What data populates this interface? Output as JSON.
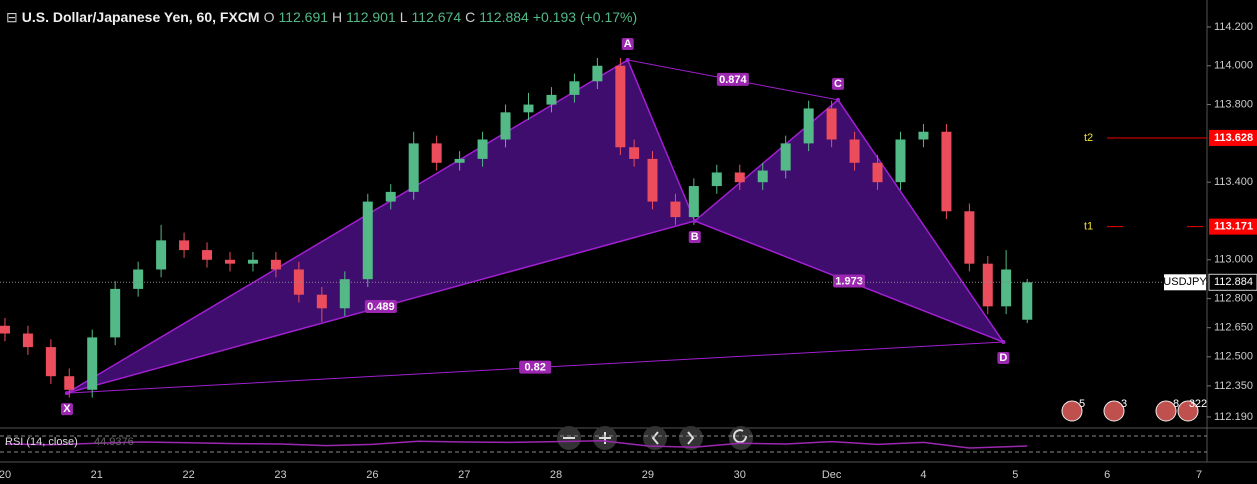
{
  "chart_data": {
    "type": "candlestick",
    "title": "U.S. Dollar/Japanese Yen, 60, FXCM",
    "legend_values": [
      {
        "label": "O",
        "value": "112.691"
      },
      {
        "label": "H",
        "value": "112.901"
      },
      {
        "label": "L",
        "value": "112.674"
      },
      {
        "label": "C",
        "value": "112.884"
      }
    ],
    "change": "+0.193 (+0.17%)",
    "categories": [
      "20",
      "21",
      "22",
      "23",
      "26",
      "27",
      "28",
      "29",
      "30",
      "Dec",
      "4",
      "5",
      "6",
      "7"
    ],
    "x": [
      0.0,
      0.25,
      0.5,
      0.7,
      0.95,
      1.2,
      1.45,
      1.7,
      1.95,
      2.2,
      2.45,
      2.7,
      2.95,
      3.2,
      3.45,
      3.7,
      3.95,
      4.2,
      4.45,
      4.7,
      4.95,
      5.2,
      5.45,
      5.7,
      5.95,
      6.2,
      6.45,
      6.7,
      6.85,
      7.05,
      7.3,
      7.5,
      7.75,
      8.0,
      8.25,
      8.5,
      8.75,
      9.0,
      9.25,
      9.5,
      9.75,
      10.0,
      10.25,
      10.5,
      10.7,
      10.9,
      11.13
    ],
    "open": [
      112.66,
      112.62,
      112.55,
      112.4,
      112.33,
      112.6,
      112.85,
      112.95,
      113.1,
      113.05,
      113.0,
      112.98,
      113.0,
      112.95,
      112.82,
      112.75,
      112.9,
      113.3,
      113.35,
      113.6,
      113.5,
      113.52,
      113.62,
      113.76,
      113.8,
      113.85,
      113.92,
      114.0,
      113.58,
      113.52,
      113.3,
      113.22,
      113.38,
      113.45,
      113.4,
      113.46,
      113.6,
      113.78,
      113.62,
      113.5,
      113.4,
      113.62,
      113.66,
      113.25,
      112.98,
      112.76,
      112.691
    ],
    "high": [
      112.7,
      112.66,
      112.59,
      112.44,
      112.64,
      112.89,
      112.99,
      113.18,
      113.14,
      113.09,
      113.04,
      113.04,
      113.04,
      112.99,
      112.86,
      112.94,
      113.34,
      113.39,
      113.66,
      113.64,
      113.56,
      113.66,
      113.8,
      113.86,
      113.89,
      113.96,
      114.04,
      114.04,
      113.62,
      113.56,
      113.34,
      113.42,
      113.49,
      113.49,
      113.5,
      113.64,
      113.82,
      113.82,
      113.66,
      113.54,
      113.66,
      113.7,
      113.7,
      113.29,
      113.02,
      113.05,
      112.901
    ],
    "low": [
      112.58,
      112.51,
      112.36,
      112.29,
      112.29,
      112.56,
      112.81,
      112.91,
      113.01,
      112.96,
      112.94,
      112.94,
      112.91,
      112.78,
      112.68,
      112.71,
      112.86,
      113.26,
      113.31,
      113.46,
      113.46,
      113.48,
      113.58,
      113.72,
      113.76,
      113.81,
      113.88,
      113.54,
      113.48,
      113.26,
      113.18,
      113.18,
      113.34,
      113.36,
      113.36,
      113.42,
      113.56,
      113.58,
      113.46,
      113.36,
      113.36,
      113.58,
      113.21,
      112.94,
      112.72,
      112.72,
      112.674
    ],
    "close": [
      112.62,
      112.55,
      112.4,
      112.33,
      112.6,
      112.85,
      112.95,
      113.1,
      113.05,
      113.0,
      112.98,
      113.0,
      112.95,
      112.82,
      112.75,
      112.9,
      113.3,
      113.35,
      113.6,
      113.5,
      113.52,
      113.62,
      113.76,
      113.8,
      113.85,
      113.92,
      114.0,
      113.58,
      113.52,
      113.3,
      113.22,
      113.38,
      113.45,
      113.4,
      113.46,
      113.6,
      113.78,
      113.62,
      113.5,
      113.4,
      113.62,
      113.66,
      113.25,
      112.98,
      112.76,
      112.95,
      112.884
    ],
    "up_color": "#53b987",
    "down_color": "#eb4d5c",
    "xlim": [
      -0.054,
      13.087
    ],
    "ylim": [
      112.133,
      114.339
    ],
    "yticks": [
      {
        "value": 114.2,
        "label": "114.200"
      },
      {
        "value": 114.0,
        "label": "114.000"
      },
      {
        "value": 113.8,
        "label": "113.800"
      },
      {
        "value": 113.4,
        "label": "113.400"
      },
      {
        "value": 113.0,
        "label": "113.000"
      },
      {
        "value": 112.8,
        "label": "112.800"
      },
      {
        "value": 112.65,
        "label": "112.650"
      },
      {
        "value": 112.5,
        "label": "112.500"
      },
      {
        "value": 112.35,
        "label": "112.350"
      },
      {
        "value": 112.19,
        "label": "112.190"
      }
    ],
    "pattern": {
      "color": "#a020d0",
      "fill": "#4a0f80",
      "points": [
        {
          "label": "X",
          "x": 0.675,
          "y": 112.313
        },
        {
          "label": "A",
          "x": 6.78,
          "y": 114.03
        },
        {
          "label": "B",
          "x": 7.51,
          "y": 113.2
        },
        {
          "label": "C",
          "x": 9.07,
          "y": 113.824
        },
        {
          "label": "D",
          "x": 10.87,
          "y": 112.576
        }
      ],
      "ratios": [
        "0.489",
        "0.874",
        "1.973",
        "0.82"
      ]
    },
    "targets": [
      {
        "label": "t2",
        "value": 113.628,
        "value_label": "113.628"
      },
      {
        "label": "t1",
        "value": 113.171,
        "value_label": "113.171"
      }
    ],
    "last_price": {
      "name": "USDJPY",
      "value": 112.884,
      "label": "112.884"
    },
    "rsi": {
      "label": "RSI (14, close)",
      "value_label": "44.9376",
      "color": "#9c27b0",
      "ylim": [
        10,
        90
      ],
      "levels": [
        70,
        30
      ],
      "x": [
        0,
        0.5,
        1,
        1.5,
        2,
        2.5,
        3,
        3.5,
        4,
        4.5,
        5,
        5.5,
        6,
        6.5,
        7,
        7.5,
        8,
        8.5,
        9,
        9.5,
        10,
        10.5,
        11.13
      ],
      "values": [
        50,
        48,
        52,
        55,
        53,
        51,
        50,
        46,
        49,
        57,
        55,
        54,
        56,
        58,
        45,
        42,
        52,
        50,
        56,
        49,
        54,
        40,
        44.9376
      ]
    },
    "events": [
      "5",
      "3",
      "8",
      "322"
    ]
  }
}
